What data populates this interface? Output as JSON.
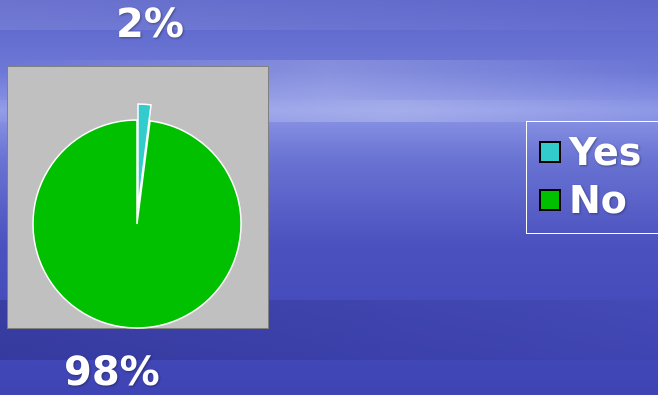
{
  "chart_data": {
    "type": "pie",
    "categories": [
      "Yes",
      "No"
    ],
    "values": [
      2,
      98
    ],
    "data_labels": [
      "2%",
      "98%"
    ],
    "colors": {
      "Yes": "#33cccc",
      "No": "#00c000"
    },
    "exploded": "Yes",
    "plot_background": "#c0c0c0",
    "legend_position": "right"
  }
}
